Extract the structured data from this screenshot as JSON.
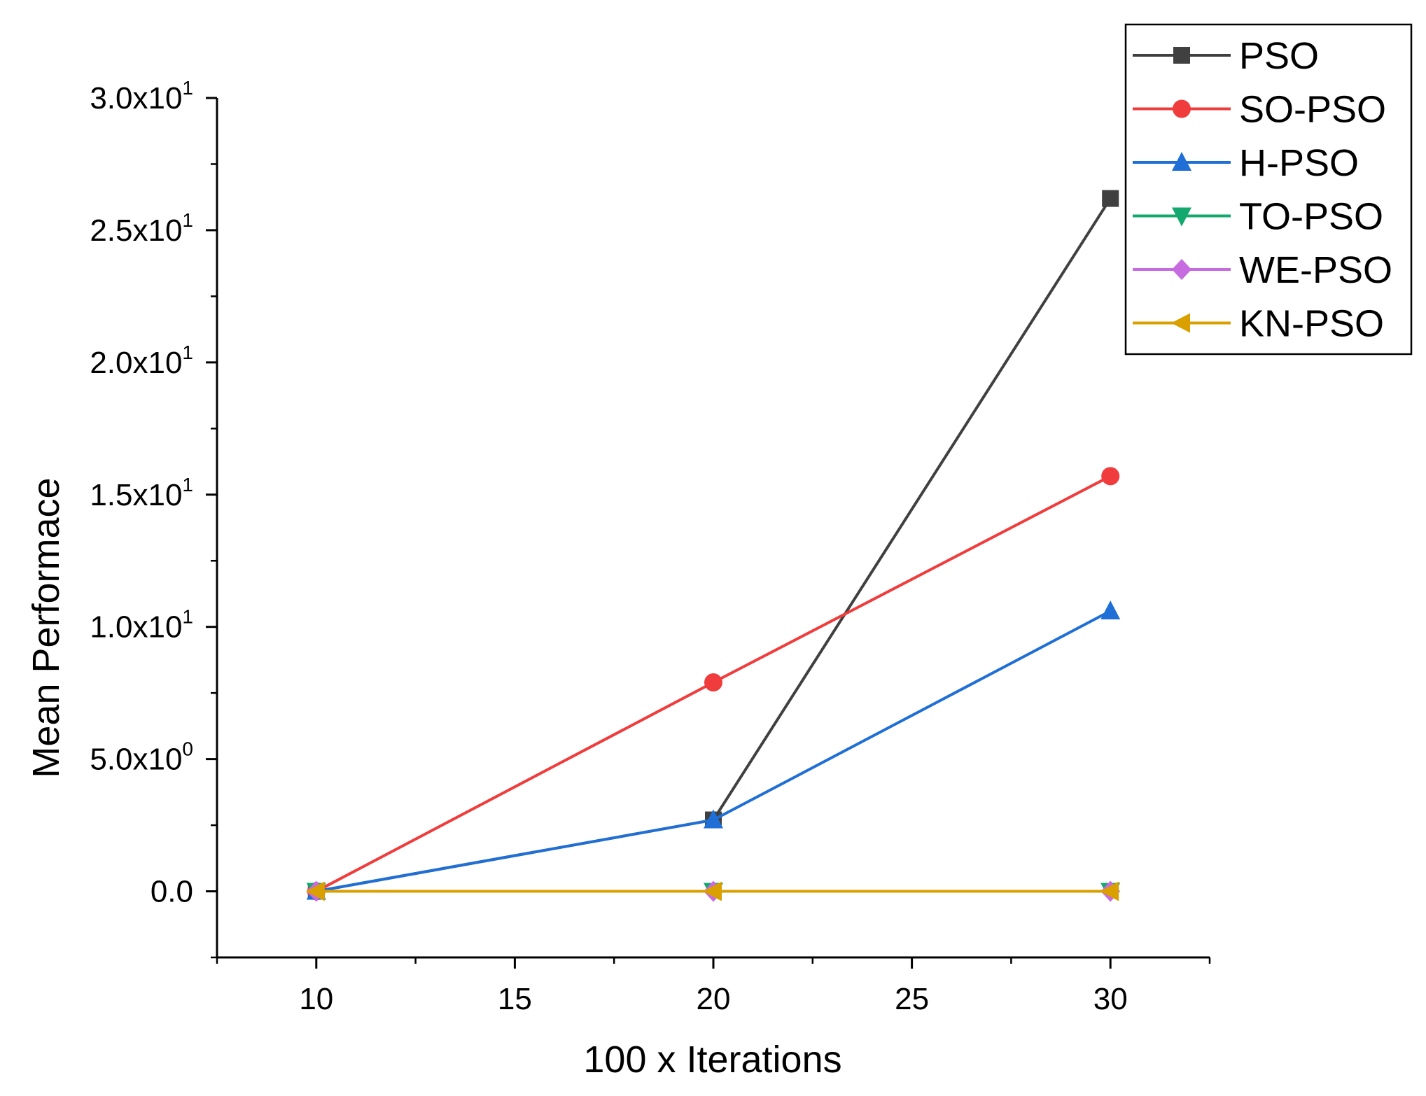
{
  "chart_data": {
    "type": "line",
    "title": "",
    "xlabel": "100 x Iterations",
    "ylabel": "Mean Performace",
    "x": [
      10,
      20,
      30
    ],
    "xlim": [
      7.5,
      32.5
    ],
    "ylim": [
      -2.5,
      30
    ],
    "x_ticks": [
      10,
      15,
      20,
      25,
      30
    ],
    "x_tick_labels": [
      "10",
      "15",
      "20",
      "25",
      "30"
    ],
    "y_ticks": [
      0,
      5,
      10,
      15,
      20,
      25,
      30
    ],
    "y_tick_labels": [
      {
        "mantissa": "0.0",
        "exp": ""
      },
      {
        "mantissa": "5.0x10",
        "exp": "0"
      },
      {
        "mantissa": "1.0x10",
        "exp": "1"
      },
      {
        "mantissa": "1.5x10",
        "exp": "1"
      },
      {
        "mantissa": "2.0x10",
        "exp": "1"
      },
      {
        "mantissa": "2.5x10",
        "exp": "1"
      },
      {
        "mantissa": "3.0x10",
        "exp": "1"
      }
    ],
    "grid": false,
    "legend_position": "top-right",
    "series": [
      {
        "name": "PSO",
        "color": "#404040",
        "marker": "square",
        "values": [
          0,
          2.7,
          26.2
        ]
      },
      {
        "name": "SO-PSO",
        "color": "#f03c3c",
        "marker": "circle",
        "values": [
          0,
          7.9,
          15.7
        ]
      },
      {
        "name": "H-PSO",
        "color": "#1f6fd6",
        "marker": "triangle-up",
        "values": [
          0,
          2.7,
          10.6
        ]
      },
      {
        "name": "TO-PSO",
        "color": "#13a86e",
        "marker": "triangle-down",
        "values": [
          0,
          0,
          0
        ]
      },
      {
        "name": "WE-PSO",
        "color": "#c76be0",
        "marker": "diamond",
        "values": [
          0,
          0,
          0
        ]
      },
      {
        "name": "KN-PSO",
        "color": "#d9a000",
        "marker": "triangle-left",
        "values": [
          0,
          0,
          0
        ]
      }
    ]
  }
}
